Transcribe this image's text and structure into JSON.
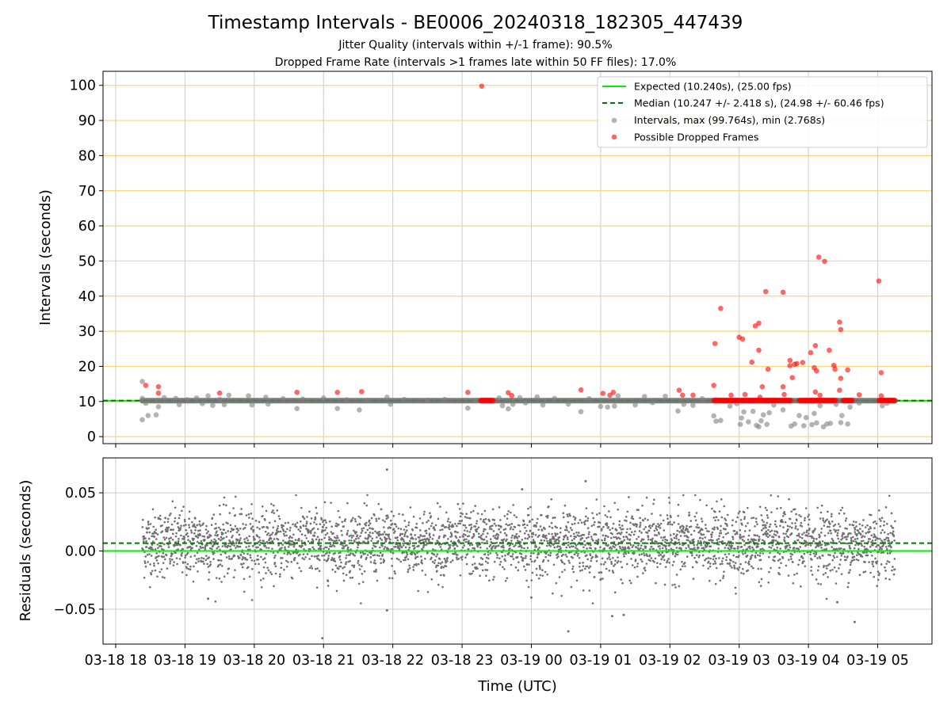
{
  "figure": {
    "title": "Timestamp Intervals - BE0006_20240318_182305_447439",
    "subtitle_1": "Jitter Quality (intervals within +/-1 frame): 90.5%",
    "subtitle_2": "Dropped Frame Rate (intervals >1 frames late within 50 FF files): 17.0%"
  },
  "colors": {
    "expected": "#00ee00",
    "median": "#007a00",
    "intervals": "#808080",
    "dropped": "#ff0000",
    "gridline": "#ffd27a",
    "grid": "#cccccc",
    "residual_points": "#707070"
  },
  "chart_data": [
    {
      "type": "scatter",
      "panel": "top",
      "ylabel": "Intervals (seconds)",
      "ylim": [
        -2,
        104
      ],
      "yticks": [
        "0",
        "10",
        "20",
        "30",
        "40",
        "50",
        "60",
        "70",
        "80",
        "90",
        "100"
      ],
      "x_range_hours_utc": [
        "2024-03-18 17:49",
        "2024-03-19 05:47"
      ],
      "grid": "vertical gray, horizontal orange",
      "legend_position": "top-right",
      "legend": [
        "Expected (10.240s), (25.00 fps)",
        "Median (10.247 +/- 2.418 s), (24.98 +/- 60.46 fps)",
        "Intervals, max (99.764s), min (2.768s)",
        "Possible Dropped Frames"
      ],
      "expected_interval": 10.24,
      "median_interval": 10.247,
      "dense_band": {
        "start": "2024-03-18 18:23",
        "end": "2024-03-19 05:15",
        "value": 10.24
      },
      "dropped_frame_runs": [
        {
          "start": "2024-03-18 23:16",
          "end": "2024-03-18 23:27",
          "value": 10.3
        },
        {
          "start": "2024-03-19 02:38",
          "end": "2024-03-19 02:59",
          "value": 10.3
        },
        {
          "start": "2024-03-19 03:00",
          "end": "2024-03-19 03:45",
          "value": 10.3
        },
        {
          "start": "2024-03-19 03:52",
          "end": "2024-03-19 04:24",
          "value": 10.3
        },
        {
          "start": "2024-03-19 04:30",
          "end": "2024-03-19 04:38",
          "value": 10.3
        },
        {
          "start": "2024-03-19 05:01",
          "end": "2024-03-19 05:15",
          "value": 10.3
        }
      ],
      "dropped_points": [
        {
          "x": "2024-03-18 18:26",
          "y": 14.6
        },
        {
          "x": "2024-03-18 18:37",
          "y": 14.2
        },
        {
          "x": "2024-03-18 18:37",
          "y": 12.4
        },
        {
          "x": "2024-03-18 19:30",
          "y": 12.4
        },
        {
          "x": "2024-03-18 20:37",
          "y": 12.6
        },
        {
          "x": "2024-03-18 21:12",
          "y": 12.6
        },
        {
          "x": "2024-03-18 21:33",
          "y": 12.8
        },
        {
          "x": "2024-03-18 23:05",
          "y": 12.6
        },
        {
          "x": "2024-03-18 23:17",
          "y": 99.764
        },
        {
          "x": "2024-03-18 23:40",
          "y": 12.5
        },
        {
          "x": "2024-03-18 23:43",
          "y": 11.7
        },
        {
          "x": "2024-03-19 00:43",
          "y": 13.3
        },
        {
          "x": "2024-03-19 01:02",
          "y": 12.3
        },
        {
          "x": "2024-03-19 01:08",
          "y": 11.8
        },
        {
          "x": "2024-03-19 01:11",
          "y": 12.6
        },
        {
          "x": "2024-03-19 02:08",
          "y": 13.2
        },
        {
          "x": "2024-03-19 02:11",
          "y": 11.8
        },
        {
          "x": "2024-03-19 02:20",
          "y": 11.8
        },
        {
          "x": "2024-03-19 02:38",
          "y": 14.6
        },
        {
          "x": "2024-03-19 02:39",
          "y": 26.5
        },
        {
          "x": "2024-03-19 02:44",
          "y": 36.5
        },
        {
          "x": "2024-03-19 02:53",
          "y": 11.8
        },
        {
          "x": "2024-03-19 03:00",
          "y": 28.3
        },
        {
          "x": "2024-03-19 03:03",
          "y": 27.8
        },
        {
          "x": "2024-03-19 03:05",
          "y": 12.0
        },
        {
          "x": "2024-03-19 03:11",
          "y": 21.2
        },
        {
          "x": "2024-03-19 03:14",
          "y": 31.5
        },
        {
          "x": "2024-03-19 03:17",
          "y": 32.3
        },
        {
          "x": "2024-03-19 03:17",
          "y": 24.6
        },
        {
          "x": "2024-03-19 03:18",
          "y": 11.2
        },
        {
          "x": "2024-03-19 03:20",
          "y": 14.2
        },
        {
          "x": "2024-03-19 03:23",
          "y": 41.3
        },
        {
          "x": "2024-03-19 03:25",
          "y": 19.2
        },
        {
          "x": "2024-03-19 03:38",
          "y": 41.1
        },
        {
          "x": "2024-03-19 03:39",
          "y": 12.0
        },
        {
          "x": "2024-03-19 03:38",
          "y": 14.2
        },
        {
          "x": "2024-03-19 03:44",
          "y": 20.2
        },
        {
          "x": "2024-03-19 03:44",
          "y": 21.7
        },
        {
          "x": "2024-03-19 03:46",
          "y": 16.8
        },
        {
          "x": "2024-03-19 03:48",
          "y": 20.6
        },
        {
          "x": "2024-03-19 03:50",
          "y": 20.8
        },
        {
          "x": "2024-03-19 03:55",
          "y": 21.1
        },
        {
          "x": "2024-03-19 04:02",
          "y": 23.9
        },
        {
          "x": "2024-03-19 04:05",
          "y": 19.6
        },
        {
          "x": "2024-03-19 04:06",
          "y": 25.9
        },
        {
          "x": "2024-03-19 04:06",
          "y": 12.7
        },
        {
          "x": "2024-03-19 04:07",
          "y": 18.7
        },
        {
          "x": "2024-03-19 04:09",
          "y": 51.1
        },
        {
          "x": "2024-03-19 04:10",
          "y": 11.8
        },
        {
          "x": "2024-03-19 04:14",
          "y": 49.9
        },
        {
          "x": "2024-03-19 04:18",
          "y": 24.6
        },
        {
          "x": "2024-03-19 04:22",
          "y": 20.3
        },
        {
          "x": "2024-03-19 04:23",
          "y": 19.2
        },
        {
          "x": "2024-03-19 04:27",
          "y": 32.6
        },
        {
          "x": "2024-03-19 04:28",
          "y": 30.5
        },
        {
          "x": "2024-03-19 04:28",
          "y": 16.6
        },
        {
          "x": "2024-03-19 04:27",
          "y": 13.2
        },
        {
          "x": "2024-03-19 04:34",
          "y": 19.0
        },
        {
          "x": "2024-03-19 04:44",
          "y": 11.9
        },
        {
          "x": "2024-03-19 05:01",
          "y": 44.3
        },
        {
          "x": "2024-03-19 05:03",
          "y": 18.2
        },
        {
          "x": "2024-03-19 05:03",
          "y": 11.6
        }
      ],
      "interval_points": [
        {
          "x": "2024-03-18 18:23",
          "y": 15.7
        },
        {
          "x": "2024-03-18 18:23",
          "y": 4.8
        },
        {
          "x": "2024-03-18 18:23",
          "y": 10.9
        },
        {
          "x": "2024-03-18 18:26",
          "y": 9.5
        },
        {
          "x": "2024-03-18 18:28",
          "y": 6.0
        },
        {
          "x": "2024-03-18 18:35",
          "y": 6.2
        },
        {
          "x": "2024-03-18 18:37",
          "y": 8.5
        },
        {
          "x": "2024-03-18 18:42",
          "y": 11.1
        },
        {
          "x": "2024-03-18 18:52",
          "y": 10.9
        },
        {
          "x": "2024-03-18 18:55",
          "y": 9.1
        },
        {
          "x": "2024-03-18 19:02",
          "y": 10.5
        },
        {
          "x": "2024-03-18 19:10",
          "y": 11.0
        },
        {
          "x": "2024-03-18 19:15",
          "y": 9.4
        },
        {
          "x": "2024-03-18 19:20",
          "y": 11.6
        },
        {
          "x": "2024-03-18 19:24",
          "y": 8.9
        },
        {
          "x": "2024-03-18 19:30",
          "y": 10.6
        },
        {
          "x": "2024-03-18 19:34",
          "y": 9.1
        },
        {
          "x": "2024-03-18 19:38",
          "y": 11.8
        },
        {
          "x": "2024-03-18 19:55",
          "y": 11.6
        },
        {
          "x": "2024-03-18 19:58",
          "y": 9.0
        },
        {
          "x": "2024-03-18 20:10",
          "y": 11.2
        },
        {
          "x": "2024-03-18 20:12",
          "y": 9.3
        },
        {
          "x": "2024-03-18 20:25",
          "y": 10.8
        },
        {
          "x": "2024-03-18 20:37",
          "y": 8.0
        },
        {
          "x": "2024-03-18 20:42",
          "y": 10.7
        },
        {
          "x": "2024-03-18 21:00",
          "y": 11.0
        },
        {
          "x": "2024-03-18 21:12",
          "y": 8.0
        },
        {
          "x": "2024-03-18 21:20",
          "y": 10.5
        },
        {
          "x": "2024-03-18 21:31",
          "y": 7.6
        },
        {
          "x": "2024-03-18 21:38",
          "y": 10.4
        },
        {
          "x": "2024-03-18 21:55",
          "y": 11.2
        },
        {
          "x": "2024-03-18 21:58",
          "y": 9.2
        },
        {
          "x": "2024-03-18 22:10",
          "y": 10.6
        },
        {
          "x": "2024-03-18 22:30",
          "y": 10.4
        },
        {
          "x": "2024-03-18 22:45",
          "y": 10.6
        },
        {
          "x": "2024-03-18 23:05",
          "y": 8.1
        },
        {
          "x": "2024-03-18 23:12",
          "y": 10.2
        },
        {
          "x": "2024-03-18 23:32",
          "y": 11.0
        },
        {
          "x": "2024-03-18 23:35",
          "y": 8.8
        },
        {
          "x": "2024-03-18 23:40",
          "y": 7.9
        },
        {
          "x": "2024-03-18 23:44",
          "y": 9.2
        },
        {
          "x": "2024-03-18 23:50",
          "y": 11.1
        },
        {
          "x": "2024-03-18 23:55",
          "y": 9.6
        },
        {
          "x": "2024-03-19 00:05",
          "y": 11.3
        },
        {
          "x": "2024-03-19 00:10",
          "y": 9.0
        },
        {
          "x": "2024-03-19 00:20",
          "y": 10.9
        },
        {
          "x": "2024-03-19 00:32",
          "y": 9.3
        },
        {
          "x": "2024-03-19 00:43",
          "y": 7.1
        },
        {
          "x": "2024-03-19 00:50",
          "y": 10.8
        },
        {
          "x": "2024-03-19 01:00",
          "y": 8.6
        },
        {
          "x": "2024-03-19 01:06",
          "y": 8.4
        },
        {
          "x": "2024-03-19 01:12",
          "y": 8.7
        },
        {
          "x": "2024-03-19 01:15",
          "y": 11.6
        },
        {
          "x": "2024-03-19 01:30",
          "y": 9.0
        },
        {
          "x": "2024-03-19 01:38",
          "y": 11.4
        },
        {
          "x": "2024-03-19 01:45",
          "y": 9.7
        },
        {
          "x": "2024-03-19 01:56",
          "y": 11.5
        },
        {
          "x": "2024-03-19 02:07",
          "y": 7.3
        },
        {
          "x": "2024-03-19 02:12",
          "y": 9.2
        },
        {
          "x": "2024-03-19 02:20",
          "y": 8.9
        },
        {
          "x": "2024-03-19 02:28",
          "y": 10.8
        },
        {
          "x": "2024-03-19 02:38",
          "y": 5.9
        },
        {
          "x": "2024-03-19 02:40",
          "y": 4.4
        },
        {
          "x": "2024-03-19 02:44",
          "y": 4.6
        },
        {
          "x": "2024-03-19 02:52",
          "y": 8.7
        },
        {
          "x": "2024-03-19 02:58",
          "y": 9.4
        },
        {
          "x": "2024-03-19 03:01",
          "y": 3.5
        },
        {
          "x": "2024-03-19 03:02",
          "y": 5.3
        },
        {
          "x": "2024-03-19 03:04",
          "y": 7.0
        },
        {
          "x": "2024-03-19 03:08",
          "y": 4.2
        },
        {
          "x": "2024-03-19 03:12",
          "y": 7.2
        },
        {
          "x": "2024-03-19 03:15",
          "y": 3.2
        },
        {
          "x": "2024-03-19 03:17",
          "y": 2.8
        },
        {
          "x": "2024-03-19 03:19",
          "y": 4.5
        },
        {
          "x": "2024-03-19 03:21",
          "y": 6.2
        },
        {
          "x": "2024-03-19 03:24",
          "y": 3.5
        },
        {
          "x": "2024-03-19 03:26",
          "y": 6.8
        },
        {
          "x": "2024-03-19 03:30",
          "y": 9.0
        },
        {
          "x": "2024-03-19 03:38",
          "y": 7.6
        },
        {
          "x": "2024-03-19 03:45",
          "y": 3.0
        },
        {
          "x": "2024-03-19 03:48",
          "y": 3.6
        },
        {
          "x": "2024-03-19 03:52",
          "y": 6.0
        },
        {
          "x": "2024-03-19 03:56",
          "y": 3.1
        },
        {
          "x": "2024-03-19 03:58",
          "y": 5.4
        },
        {
          "x": "2024-03-19 04:03",
          "y": 3.4
        },
        {
          "x": "2024-03-19 04:05",
          "y": 6.6
        },
        {
          "x": "2024-03-19 04:07",
          "y": 3.9
        },
        {
          "x": "2024-03-19 04:10",
          "y": 8.8
        },
        {
          "x": "2024-03-19 04:13",
          "y": 2.8
        },
        {
          "x": "2024-03-19 04:16",
          "y": 3.6
        },
        {
          "x": "2024-03-19 04:19",
          "y": 3.8
        },
        {
          "x": "2024-03-19 04:24",
          "y": 9.2
        },
        {
          "x": "2024-03-19 04:28",
          "y": 4.0
        },
        {
          "x": "2024-03-19 04:29",
          "y": 6.0
        },
        {
          "x": "2024-03-19 04:34",
          "y": 3.6
        },
        {
          "x": "2024-03-19 04:36",
          "y": 8.4
        },
        {
          "x": "2024-03-19 04:44",
          "y": 9.6
        },
        {
          "x": "2024-03-19 05:04",
          "y": 8.8
        },
        {
          "x": "2024-03-19 05:08",
          "y": 9.5
        }
      ]
    },
    {
      "type": "scatter",
      "panel": "bottom",
      "ylabel": "Residuals (seconds)",
      "xlabel": "Time (UTC)",
      "ylim": [
        -0.08,
        0.08
      ],
      "yticks": [
        "0.05",
        "0.00",
        "−0.05"
      ],
      "xticks": [
        "03-18 18",
        "03-18 19",
        "03-18 20",
        "03-18 21",
        "03-18 22",
        "03-18 23",
        "03-19 00",
        "03-19 01",
        "03-19 02",
        "03-19 03",
        "03-19 04",
        "03-19 05"
      ],
      "grid": "on",
      "zero_line": 0.0,
      "median_residual": 0.0067,
      "residual_std": 0.016,
      "n_points": 3600,
      "x_range": [
        "2024-03-18 18:23",
        "2024-03-19 05:15"
      ],
      "outliers": [
        {
          "x": "2024-03-18 21:55",
          "y": 0.07
        },
        {
          "x": "2024-03-18 20:59",
          "y": -0.075
        },
        {
          "x": "2024-03-18 21:55",
          "y": -0.051
        },
        {
          "x": "2024-03-19 00:32",
          "y": -0.069
        },
        {
          "x": "2024-03-19 04:40",
          "y": -0.061
        },
        {
          "x": "2024-03-18 19:20",
          "y": -0.041
        },
        {
          "x": "2024-03-19 00:00",
          "y": -0.04
        },
        {
          "x": "2024-03-19 01:10",
          "y": -0.056
        },
        {
          "x": "2024-03-19 01:20",
          "y": -0.055
        },
        {
          "x": "2024-03-19 00:47",
          "y": 0.06
        },
        {
          "x": "2024-03-18 23:52",
          "y": 0.053
        },
        {
          "x": "2024-03-19 04:25",
          "y": -0.044
        }
      ]
    }
  ]
}
